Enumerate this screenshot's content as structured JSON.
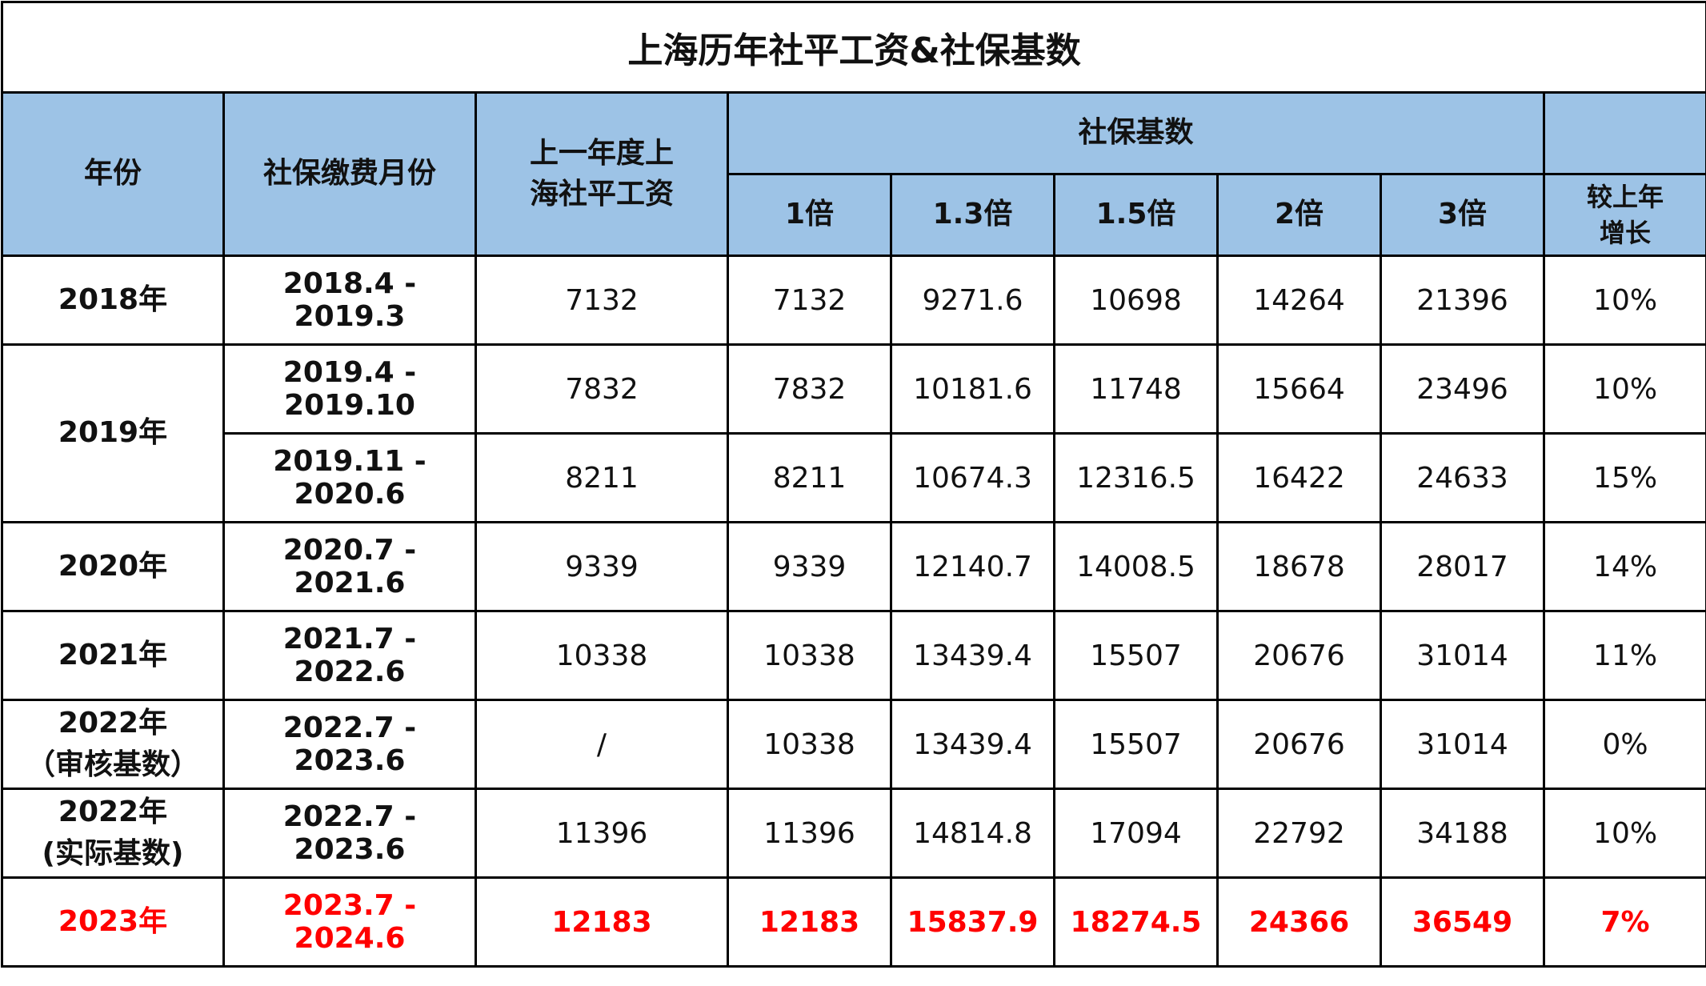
{
  "title": "上海历年社平工资&社保基数",
  "headers": {
    "year": "年份",
    "period": "社保缴费月份",
    "avg_wage_line1": "上一年度上",
    "avg_wage_line2": "海社平工资",
    "base_group": "社保基数",
    "growth_line1": "较上年",
    "growth_line2": "增长",
    "multipliers": [
      "1倍",
      "1.3倍",
      "1.5倍",
      "2倍",
      "3倍"
    ]
  },
  "rows": [
    {
      "year": "2018年",
      "sub": "",
      "period": "2018.4 - 2019.3",
      "wage": "7132",
      "m1": "7132",
      "m13": "9271.6",
      "m15": "10698",
      "m2": "14264",
      "m3": "21396",
      "growth": "10%"
    },
    {
      "year": "2019年",
      "sub": "",
      "period": "2019.4 - 2019.10",
      "wage": "7832",
      "m1": "7832",
      "m13": "10181.6",
      "m15": "11748",
      "m2": "15664",
      "m3": "23496",
      "growth": "10%"
    },
    {
      "year": "",
      "sub": "",
      "period": "2019.11 - 2020.6",
      "wage": "8211",
      "m1": "8211",
      "m13": "10674.3",
      "m15": "12316.5",
      "m2": "16422",
      "m3": "24633",
      "growth": "15%"
    },
    {
      "year": "2020年",
      "sub": "",
      "period": "2020.7 - 2021.6",
      "wage": "9339",
      "m1": "9339",
      "m13": "12140.7",
      "m15": "14008.5",
      "m2": "18678",
      "m3": "28017",
      "growth": "14%"
    },
    {
      "year": "2021年",
      "sub": "",
      "period": "2021.7 - 2022.6",
      "wage": "10338",
      "m1": "10338",
      "m13": "13439.4",
      "m15": "15507",
      "m2": "20676",
      "m3": "31014",
      "growth": "11%"
    },
    {
      "year": "2022年",
      "sub": "（审核基数）",
      "period": "2022.7 - 2023.6",
      "wage": "/",
      "m1": "10338",
      "m13": "13439.4",
      "m15": "15507",
      "m2": "20676",
      "m3": "31014",
      "growth": "0%"
    },
    {
      "year": "2022年",
      "sub": "(实际基数)",
      "period": "2022.7 - 2023.6",
      "wage": "11396",
      "m1": "11396",
      "m13": "14814.8",
      "m15": "17094",
      "m2": "22792",
      "m3": "34188",
      "growth": "10%"
    },
    {
      "year": "2023年",
      "sub": "",
      "period": "2023.7 - 2024.6",
      "wage": "12183",
      "m1": "12183",
      "m13": "15837.9",
      "m15": "18274.5",
      "m2": "24366",
      "m3": "36549",
      "growth": "7%"
    }
  ],
  "colors": {
    "header_bg": "#9dc3e6",
    "highlight": "#ff0000",
    "border": "#000000"
  }
}
